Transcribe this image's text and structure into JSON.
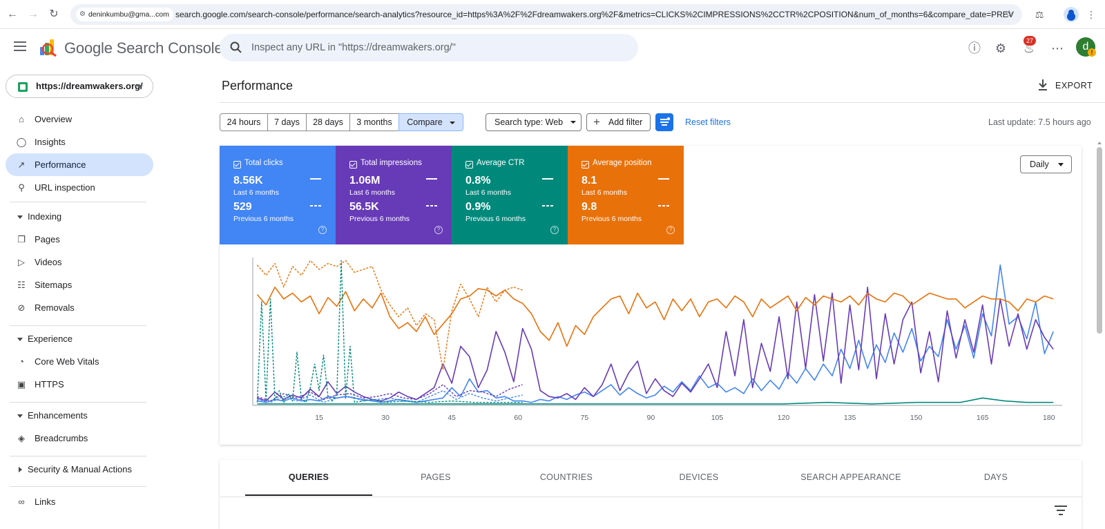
{
  "browser": {
    "account": "deninkumbu@gma...com",
    "url": "search.google.com/search-console/performance/search-analytics?resource_id=https%3A%2F%2Fdreamwakers.org%2F&metrics=CLICKS%2CIMPRESSIONS%2CCTR%2CPOSITION&num_of_months=6&compare_date=PREV"
  },
  "header": {
    "app_title": "Google Search Console",
    "search_placeholder": "Inspect any URL in \"https://dreamwakers.org/\"",
    "notification_count": "27",
    "user_initial": "d",
    "warning_mark": "!"
  },
  "sidebar": {
    "property": "https://dreamwakers.org/",
    "items": [
      {
        "label": "Overview",
        "icon": "home-icon"
      },
      {
        "label": "Insights",
        "icon": "lightbulb-icon"
      },
      {
        "label": "Performance",
        "icon": "trending-up-icon",
        "active": true
      },
      {
        "label": "URL inspection",
        "icon": "search-icon"
      }
    ],
    "indexing": {
      "label": "Indexing",
      "items": [
        {
          "label": "Pages",
          "icon": "pages-icon"
        },
        {
          "label": "Videos",
          "icon": "video-icon"
        },
        {
          "label": "Sitemaps",
          "icon": "sitemap-icon"
        },
        {
          "label": "Removals",
          "icon": "removals-icon"
        }
      ]
    },
    "experience": {
      "label": "Experience",
      "items": [
        {
          "label": "Core Web Vitals",
          "icon": "gauge-icon"
        },
        {
          "label": "HTTPS",
          "icon": "lock-icon"
        }
      ]
    },
    "enhancements": {
      "label": "Enhancements",
      "items": [
        {
          "label": "Breadcrumbs",
          "icon": "layers-icon"
        }
      ]
    },
    "security": {
      "label": "Security & Manual Actions"
    },
    "links": {
      "label": "Links",
      "icon": "link-icon"
    }
  },
  "main": {
    "page_title": "Performance",
    "export_label": "EXPORT",
    "date_ranges": [
      "24 hours",
      "7 days",
      "28 days",
      "3 months",
      "Compare"
    ],
    "search_type": "Search type: Web",
    "add_filter": "Add filter",
    "reset_filters": "Reset filters",
    "last_update": "Last update: 7.5 hours ago",
    "granularity": "Daily",
    "metrics": [
      {
        "name": "Total clicks",
        "current": "8.56K",
        "current_period": "Last 6 months",
        "previous": "529",
        "previous_period": "Previous 6 months",
        "color": "#4285f4"
      },
      {
        "name": "Total impressions",
        "current": "1.06M",
        "current_period": "Last 6 months",
        "previous": "56.5K",
        "previous_period": "Previous 6 months",
        "color": "#673ab7"
      },
      {
        "name": "Average CTR",
        "current": "0.8%",
        "current_period": "Last 6 months",
        "previous": "0.9%",
        "previous_period": "Previous 6 months",
        "color": "#00897b"
      },
      {
        "name": "Average position",
        "current": "8.1",
        "current_period": "Last 6 months",
        "previous": "9.8",
        "previous_period": "Previous 6 months",
        "color": "#e8710a"
      }
    ],
    "tabs": [
      "QUERIES",
      "PAGES",
      "COUNTRIES",
      "DEVICES",
      "SEARCH APPEARANCE",
      "DAYS"
    ]
  },
  "chart_data": {
    "type": "line",
    "x_ticks": [
      15,
      30,
      45,
      60,
      75,
      90,
      105,
      120,
      135,
      150,
      165,
      180
    ],
    "xlim": [
      0,
      183
    ],
    "grid": false,
    "note_scales": "each metric drawn on its own hidden axis; y values are relative 0-100",
    "series": [
      {
        "name": "Total clicks",
        "style": "solid",
        "color": "#4285f4",
        "x": [
          1,
          3,
          5,
          7,
          9,
          11,
          13,
          15,
          17,
          19,
          21,
          23,
          25,
          27,
          29,
          31,
          33,
          35,
          37,
          39,
          41,
          43,
          45,
          47,
          49,
          51,
          53,
          55,
          57,
          59,
          61,
          63,
          65,
          67,
          69,
          71,
          73,
          75,
          77,
          79,
          81,
          83,
          85,
          87,
          89,
          91,
          93,
          95,
          97,
          99,
          101,
          103,
          105,
          107,
          109,
          111,
          113,
          115,
          117,
          119,
          121,
          123,
          125,
          127,
          129,
          131,
          133,
          135,
          137,
          139,
          141,
          143,
          145,
          147,
          149,
          151,
          153,
          155,
          157,
          159,
          161,
          163,
          165,
          167,
          169,
          171,
          173,
          175,
          177,
          179,
          181
        ],
        "y": [
          3,
          2,
          4,
          3,
          5,
          3,
          4,
          3,
          6,
          5,
          6,
          5,
          4,
          3,
          2,
          3,
          4,
          3,
          2,
          3,
          4,
          5,
          12,
          6,
          18,
          9,
          10,
          5,
          6,
          3,
          3,
          2,
          4,
          3,
          6,
          4,
          7,
          9,
          6,
          10,
          14,
          7,
          12,
          8,
          5,
          7,
          13,
          9,
          16,
          10,
          20,
          12,
          15,
          9,
          12,
          8,
          18,
          10,
          17,
          11,
          22,
          15,
          25,
          17,
          28,
          20,
          38,
          25,
          44,
          25,
          41,
          29,
          49,
          36,
          52,
          30,
          40,
          33,
          58,
          38,
          54,
          32,
          62,
          47,
          95,
          55,
          60,
          45,
          70,
          35,
          50
        ]
      },
      {
        "name": "Total impressions",
        "style": "solid",
        "color": "#673ab7",
        "x": [
          1,
          3,
          5,
          7,
          9,
          11,
          13,
          15,
          17,
          19,
          21,
          23,
          25,
          27,
          29,
          31,
          33,
          35,
          37,
          39,
          41,
          43,
          45,
          47,
          49,
          51,
          53,
          55,
          57,
          59,
          61,
          63,
          65,
          67,
          69,
          71,
          73,
          75,
          77,
          79,
          81,
          83,
          85,
          87,
          89,
          91,
          93,
          95,
          97,
          99,
          101,
          103,
          105,
          107,
          109,
          111,
          113,
          115,
          117,
          119,
          121,
          123,
          125,
          127,
          129,
          131,
          133,
          135,
          137,
          139,
          141,
          143,
          145,
          147,
          149,
          151,
          153,
          155,
          157,
          159,
          161,
          163,
          165,
          167,
          169,
          171,
          173,
          175,
          177,
          179,
          181
        ],
        "y": [
          5,
          3,
          9,
          4,
          7,
          5,
          11,
          6,
          16,
          8,
          13,
          9,
          6,
          4,
          3,
          5,
          9,
          6,
          4,
          8,
          12,
          28,
          15,
          40,
          33,
          12,
          24,
          50,
          36,
          16,
          52,
          38,
          10,
          6,
          5,
          8,
          4,
          12,
          6,
          14,
          28,
          10,
          22,
          30,
          8,
          18,
          10,
          6,
          15,
          9,
          18,
          28,
          12,
          50,
          20,
          58,
          12,
          42,
          23,
          60,
          18,
          70,
          25,
          75,
          30,
          76,
          15,
          68,
          24,
          80,
          18,
          62,
          28,
          58,
          70,
          22,
          50,
          16,
          64,
          32,
          58,
          36,
          68,
          28,
          72,
          40,
          62,
          38,
          58,
          46,
          38
        ]
      },
      {
        "name": "Average CTR",
        "style": "solid",
        "color": "#00897b",
        "x": [
          1,
          10,
          20,
          30,
          40,
          50,
          60,
          70,
          80,
          90,
          100,
          110,
          120,
          130,
          140,
          150,
          160,
          165,
          170,
          175,
          181
        ],
        "y": [
          1,
          1,
          1,
          1,
          1,
          1,
          1,
          1,
          1,
          1,
          1,
          1,
          1,
          2,
          1,
          2,
          2,
          5,
          3,
          2,
          2
        ]
      },
      {
        "name": "Average position",
        "style": "solid",
        "color": "#e8710a",
        "x": [
          1,
          3,
          5,
          7,
          9,
          11,
          13,
          15,
          17,
          19,
          21,
          23,
          25,
          27,
          29,
          31,
          33,
          35,
          37,
          39,
          41,
          43,
          45,
          47,
          49,
          51,
          53,
          55,
          57,
          59,
          61,
          63,
          65,
          67,
          69,
          71,
          73,
          75,
          77,
          79,
          81,
          83,
          85,
          87,
          89,
          91,
          93,
          95,
          97,
          99,
          101,
          103,
          105,
          107,
          109,
          111,
          113,
          115,
          117,
          119,
          121,
          123,
          125,
          127,
          129,
          131,
          133,
          135,
          137,
          139,
          141,
          143,
          145,
          147,
          149,
          151,
          153,
          155,
          157,
          159,
          161,
          163,
          165,
          167,
          169,
          171,
          173,
          175,
          177,
          179,
          181
        ],
        "y": [
          75,
          68,
          80,
          72,
          76,
          70,
          74,
          62,
          73,
          67,
          77,
          64,
          72,
          66,
          76,
          60,
          52,
          56,
          50,
          60,
          48,
          55,
          62,
          72,
          74,
          79,
          78,
          74,
          78,
          72,
          69,
          62,
          50,
          44,
          56,
          40,
          54,
          48,
          60,
          66,
          72,
          74,
          62,
          76,
          66,
          70,
          58,
          72,
          64,
          72,
          60,
          70,
          72,
          66,
          74,
          70,
          60,
          72,
          66,
          70,
          74,
          64,
          73,
          68,
          74,
          72,
          70,
          74,
          68,
          76,
          72,
          70,
          76,
          74,
          68,
          72,
          76,
          74,
          72,
          72,
          66,
          70,
          74,
          72,
          72,
          70,
          64,
          72,
          70,
          74,
          72
        ]
      },
      {
        "name": "Total clicks (previous)",
        "style": "dashed",
        "color": "#4285f4",
        "x": [
          1,
          4,
          7,
          10,
          13,
          16,
          19,
          22,
          25,
          28,
          31,
          34,
          37,
          40,
          43,
          46,
          49,
          52,
          55,
          58,
          61
        ],
        "y": [
          4,
          2,
          6,
          3,
          7,
          2,
          5,
          6,
          3,
          4,
          5,
          3,
          2,
          6,
          10,
          4,
          8,
          5,
          3,
          5,
          7
        ]
      },
      {
        "name": "Total impressions (previous)",
        "style": "dashed",
        "color": "#673ab7",
        "x": [
          1,
          4,
          7,
          10,
          13,
          16,
          19,
          22,
          25,
          28,
          31,
          34,
          37,
          40,
          43,
          46,
          49,
          52,
          55,
          58,
          61
        ],
        "y": [
          6,
          3,
          8,
          5,
          9,
          4,
          7,
          8,
          5,
          6,
          8,
          5,
          4,
          8,
          14,
          6,
          10,
          9,
          6,
          11,
          14
        ]
      },
      {
        "name": "Average CTR (previous)",
        "style": "dashed",
        "color": "#00897b",
        "x": [
          1,
          2,
          3,
          4,
          5,
          6,
          7,
          8,
          9,
          10,
          11,
          12,
          13,
          14,
          15,
          16,
          17,
          18,
          19,
          20,
          21,
          22,
          23,
          25,
          27,
          30,
          35,
          40,
          45,
          50,
          55,
          60,
          61
        ],
        "y": [
          2,
          70,
          3,
          72,
          4,
          10,
          2,
          8,
          3,
          36,
          4,
          2,
          12,
          28,
          10,
          34,
          6,
          3,
          8,
          98,
          5,
          40,
          2,
          3,
          4,
          2,
          3,
          2,
          3,
          2,
          2,
          2,
          2
        ]
      },
      {
        "name": "Average position (previous)",
        "style": "dashed",
        "color": "#e8710a",
        "x": [
          1,
          3,
          5,
          7,
          9,
          11,
          13,
          15,
          17,
          19,
          21,
          23,
          25,
          27,
          29,
          31,
          33,
          35,
          37,
          39,
          41,
          43,
          45,
          47,
          49,
          51,
          53,
          55,
          57,
          59,
          61
        ],
        "y": [
          95,
          88,
          96,
          80,
          94,
          88,
          98,
          92,
          96,
          94,
          98,
          90,
          92,
          94,
          78,
          68,
          60,
          66,
          54,
          62,
          58,
          24,
          64,
          82,
          72,
          60,
          80,
          70,
          78,
          80,
          78
        ]
      }
    ]
  }
}
